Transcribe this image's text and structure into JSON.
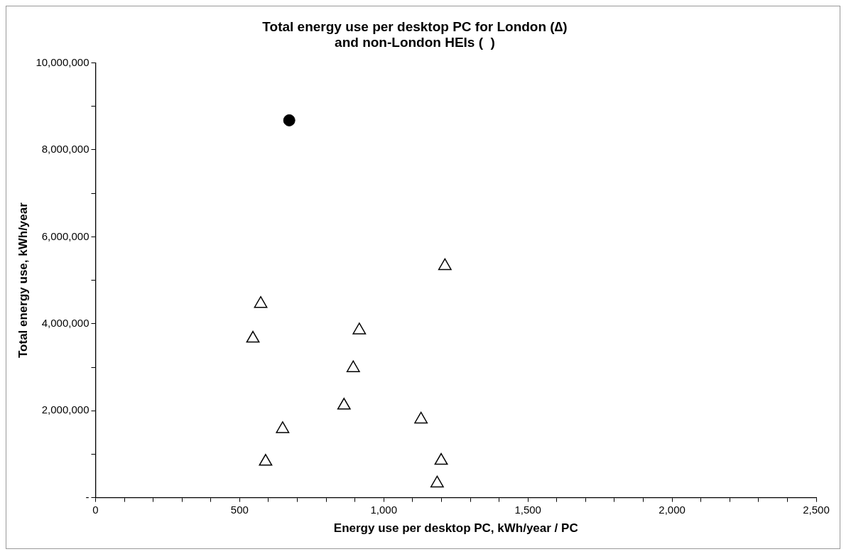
{
  "chart_data": {
    "type": "scatter",
    "title": [
      "Total energy use per desktop PC for London (∆)",
      "and non-London HEIs (  )"
    ],
    "xlabel": "Energy use per desktop PC, kWh/year / PC",
    "ylabel": "Total energy use, kWh/year",
    "series": [
      {
        "type": "scatter",
        "marker": "circle",
        "color": "#000000",
        "x": [
          672
        ],
        "values": [
          8680000
        ]
      },
      {
        "type": "scatter",
        "marker": "triangle",
        "color": "#000000",
        "x": [
          1212,
          573,
          546,
          915,
          894,
          862,
          1129,
          649,
          590,
          1199,
          1185
        ],
        "values": [
          5330000,
          4460000,
          3660000,
          3850000,
          2980000,
          2120000,
          1800000,
          1580000,
          830000,
          850000,
          330000
        ]
      }
    ],
    "xlim": [
      0,
      2500
    ],
    "xticks": [
      0,
      {
        "value": 100,
        "label": null
      },
      {
        "value": 200,
        "label": null
      },
      {
        "value": 300,
        "label": null
      },
      {
        "value": 400,
        "label": null
      },
      {
        "value": 500,
        "label": "500"
      },
      {
        "value": 600,
        "label": null
      },
      {
        "value": 700,
        "label": null
      },
      {
        "value": 800,
        "label": null
      },
      {
        "value": 900,
        "label": null
      },
      {
        "value": 1000,
        "label": "1,000"
      },
      {
        "value": 1100,
        "label": null
      },
      {
        "value": 1200,
        "label": null
      },
      {
        "value": 1300,
        "label": null
      },
      {
        "value": 1400,
        "label": null
      },
      {
        "value": 1500,
        "label": "1,500"
      },
      {
        "value": 1600,
        "label": null
      },
      {
        "value": 1700,
        "label": null
      },
      {
        "value": 1800,
        "label": null
      },
      {
        "value": 1900,
        "label": null
      },
      {
        "value": 2000,
        "label": "2,000"
      },
      {
        "value": 2100,
        "label": null
      },
      {
        "value": 2200,
        "label": null
      },
      {
        "value": 2300,
        "label": null
      },
      {
        "value": 2400,
        "label": null
      },
      {
        "value": 2500,
        "label": "2,500"
      }
    ],
    "ylim": [
      0,
      10000000
    ],
    "yticks": [
      {
        "value": 0,
        "label": "-"
      },
      {
        "value": 1000000,
        "label": null
      },
      {
        "value": 2000000,
        "label": "2,000,000"
      },
      {
        "value": 3000000,
        "label": null
      },
      {
        "value": 4000000,
        "label": "4,000,000"
      },
      {
        "value": 5000000,
        "label": null
      },
      {
        "value": 6000000,
        "label": "6,000,000"
      },
      {
        "value": 7000000,
        "label": null
      },
      {
        "value": 8000000,
        "label": "8,000,000"
      },
      {
        "value": 9000000,
        "label": null
      },
      {
        "value": 10000000,
        "label": "10,000,000"
      }
    ],
    "grid": false,
    "legend": false
  }
}
